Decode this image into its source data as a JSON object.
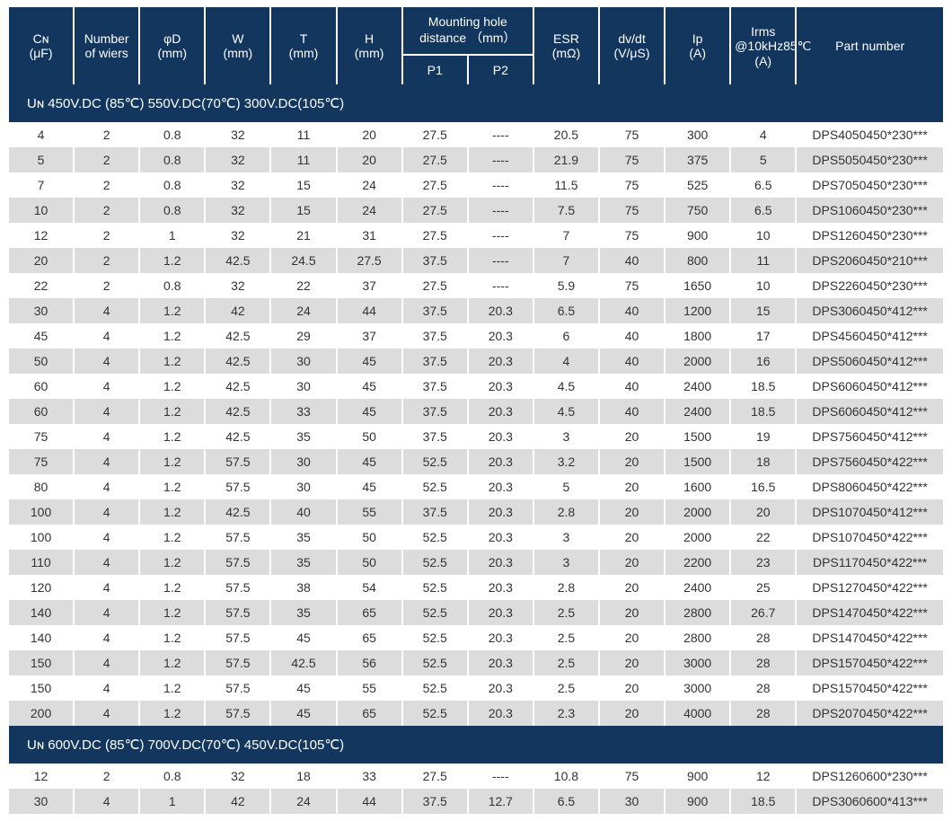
{
  "colors": {
    "header_bg": "#12365e",
    "header_text": "#ffffff",
    "row_even_bg": "#ffffff",
    "row_odd_bg": "#dcdcdc",
    "text": "#333333"
  },
  "typography": {
    "font_family": "Arial, Helvetica, sans-serif",
    "header_fontsize": 14,
    "cell_fontsize": 14,
    "section_fontsize": 15
  },
  "headers": {
    "cn": "Cɴ\n(μF)",
    "wiers": "Number\nof wiers",
    "phid": "φD\n(mm)",
    "w": "W\n(mm)",
    "t": "T\n(mm)",
    "h": "H\n(mm)",
    "mount_group": "Mounting hole\ndistance （mm）",
    "p1": "P1",
    "p2": "P2",
    "esr": "ESR\n(mΩ)",
    "dvdt": "dv/dt\n(V/μS)",
    "ip": "Ip\n(A)",
    "irms": "Irms\n@10kHz85℃\n(A)",
    "part": "Part number"
  },
  "sections": [
    {
      "title": "Uɴ 450V.DC (85℃)  550V.DC(70℃)  300V.DC(105℃)",
      "rows": [
        [
          "4",
          "2",
          "0.8",
          "32",
          "11",
          "20",
          "27.5",
          "----",
          "20.5",
          "75",
          "300",
          "4",
          "DPS4050450*230***"
        ],
        [
          "5",
          "2",
          "0.8",
          "32",
          "11",
          "20",
          "27.5",
          "----",
          "21.9",
          "75",
          "375",
          "5",
          "DPS5050450*230***"
        ],
        [
          "7",
          "2",
          "0.8",
          "32",
          "15",
          "24",
          "27.5",
          "----",
          "11.5",
          "75",
          "525",
          "6.5",
          "DPS7050450*230***"
        ],
        [
          "10",
          "2",
          "0.8",
          "32",
          "15",
          "24",
          "27.5",
          "----",
          "7.5",
          "75",
          "750",
          "6.5",
          "DPS1060450*230***"
        ],
        [
          "12",
          "2",
          "1",
          "32",
          "21",
          "31",
          "27.5",
          "----",
          "7",
          "75",
          "900",
          "10",
          "DPS1260450*230***"
        ],
        [
          "20",
          "2",
          "1.2",
          "42.5",
          "24.5",
          "27.5",
          "37.5",
          "----",
          "7",
          "40",
          "800",
          "11",
          "DPS2060450*210***"
        ],
        [
          "22",
          "2",
          "0.8",
          "32",
          "22",
          "37",
          "27.5",
          "----",
          "5.9",
          "75",
          "1650",
          "10",
          "DPS2260450*230***"
        ],
        [
          "30",
          "4",
          "1.2",
          "42",
          "24",
          "44",
          "37.5",
          "20.3",
          "6.5",
          "40",
          "1200",
          "15",
          "DPS3060450*412***"
        ],
        [
          "45",
          "4",
          "1.2",
          "42.5",
          "29",
          "37",
          "37.5",
          "20.3",
          "6",
          "40",
          "1800",
          "17",
          "DPS4560450*412***"
        ],
        [
          "50",
          "4",
          "1.2",
          "42.5",
          "30",
          "45",
          "37.5",
          "20.3",
          "4",
          "40",
          "2000",
          "16",
          "DPS5060450*412***"
        ],
        [
          "60",
          "4",
          "1.2",
          "42.5",
          "30",
          "45",
          "37.5",
          "20.3",
          "4.5",
          "40",
          "2400",
          "18.5",
          "DPS6060450*412***"
        ],
        [
          "60",
          "4",
          "1.2",
          "42.5",
          "33",
          "45",
          "37.5",
          "20.3",
          "4.5",
          "40",
          "2400",
          "18.5",
          "DPS6060450*412***"
        ],
        [
          "75",
          "4",
          "1.2",
          "42.5",
          "35",
          "50",
          "37.5",
          "20.3",
          "3",
          "20",
          "1500",
          "19",
          "DPS7560450*412***"
        ],
        [
          "75",
          "4",
          "1.2",
          "57.5",
          "30",
          "45",
          "52.5",
          "20.3",
          "3.2",
          "20",
          "1500",
          "18",
          "DPS7560450*422***"
        ],
        [
          "80",
          "4",
          "1.2",
          "57.5",
          "30",
          "45",
          "52.5",
          "20.3",
          "5",
          "20",
          "1600",
          "16.5",
          "DPS8060450*422***"
        ],
        [
          "100",
          "4",
          "1.2",
          "42.5",
          "40",
          "55",
          "37.5",
          "20.3",
          "2.8",
          "20",
          "2000",
          "20",
          "DPS1070450*412***"
        ],
        [
          "100",
          "4",
          "1.2",
          "57.5",
          "35",
          "50",
          "52.5",
          "20.3",
          "3",
          "20",
          "2000",
          "22",
          "DPS1070450*422***"
        ],
        [
          "110",
          "4",
          "1.2",
          "57.5",
          "35",
          "50",
          "52.5",
          "20.3",
          "3",
          "20",
          "2200",
          "23",
          "DPS1170450*422***"
        ],
        [
          "120",
          "4",
          "1.2",
          "57.5",
          "38",
          "54",
          "52.5",
          "20.3",
          "2.8",
          "20",
          "2400",
          "25",
          "DPS1270450*422***"
        ],
        [
          "140",
          "4",
          "1.2",
          "57.5",
          "35",
          "65",
          "52.5",
          "20.3",
          "2.5",
          "20",
          "2800",
          "26.7",
          "DPS1470450*422***"
        ],
        [
          "140",
          "4",
          "1.2",
          "57.5",
          "45",
          "65",
          "52.5",
          "20.3",
          "2.5",
          "20",
          "2800",
          "28",
          "DPS1470450*422***"
        ],
        [
          "150",
          "4",
          "1.2",
          "57.5",
          "42.5",
          "56",
          "52.5",
          "20.3",
          "2.5",
          "20",
          "3000",
          "28",
          "DPS1570450*422***"
        ],
        [
          "150",
          "4",
          "1.2",
          "57.5",
          "45",
          "55",
          "52.5",
          "20.3",
          "2.5",
          "20",
          "3000",
          "28",
          "DPS1570450*422***"
        ],
        [
          "200",
          "4",
          "1.2",
          "57.5",
          "45",
          "65",
          "52.5",
          "20.3",
          "2.3",
          "20",
          "4000",
          "28",
          "DPS2070450*422***"
        ]
      ]
    },
    {
      "title": "Uɴ 600V.DC (85℃)  700V.DC(70℃)  450V.DC(105℃)",
      "rows": [
        [
          "12",
          "2",
          "0.8",
          "32",
          "18",
          "33",
          "27.5",
          "----",
          "10.8",
          "75",
          "900",
          "12",
          "DPS1260600*230***"
        ],
        [
          "30",
          "4",
          "1",
          "42",
          "24",
          "44",
          "37.5",
          "12.7",
          "6.5",
          "30",
          "900",
          "18.5",
          "DPS3060600*413***"
        ]
      ]
    }
  ]
}
